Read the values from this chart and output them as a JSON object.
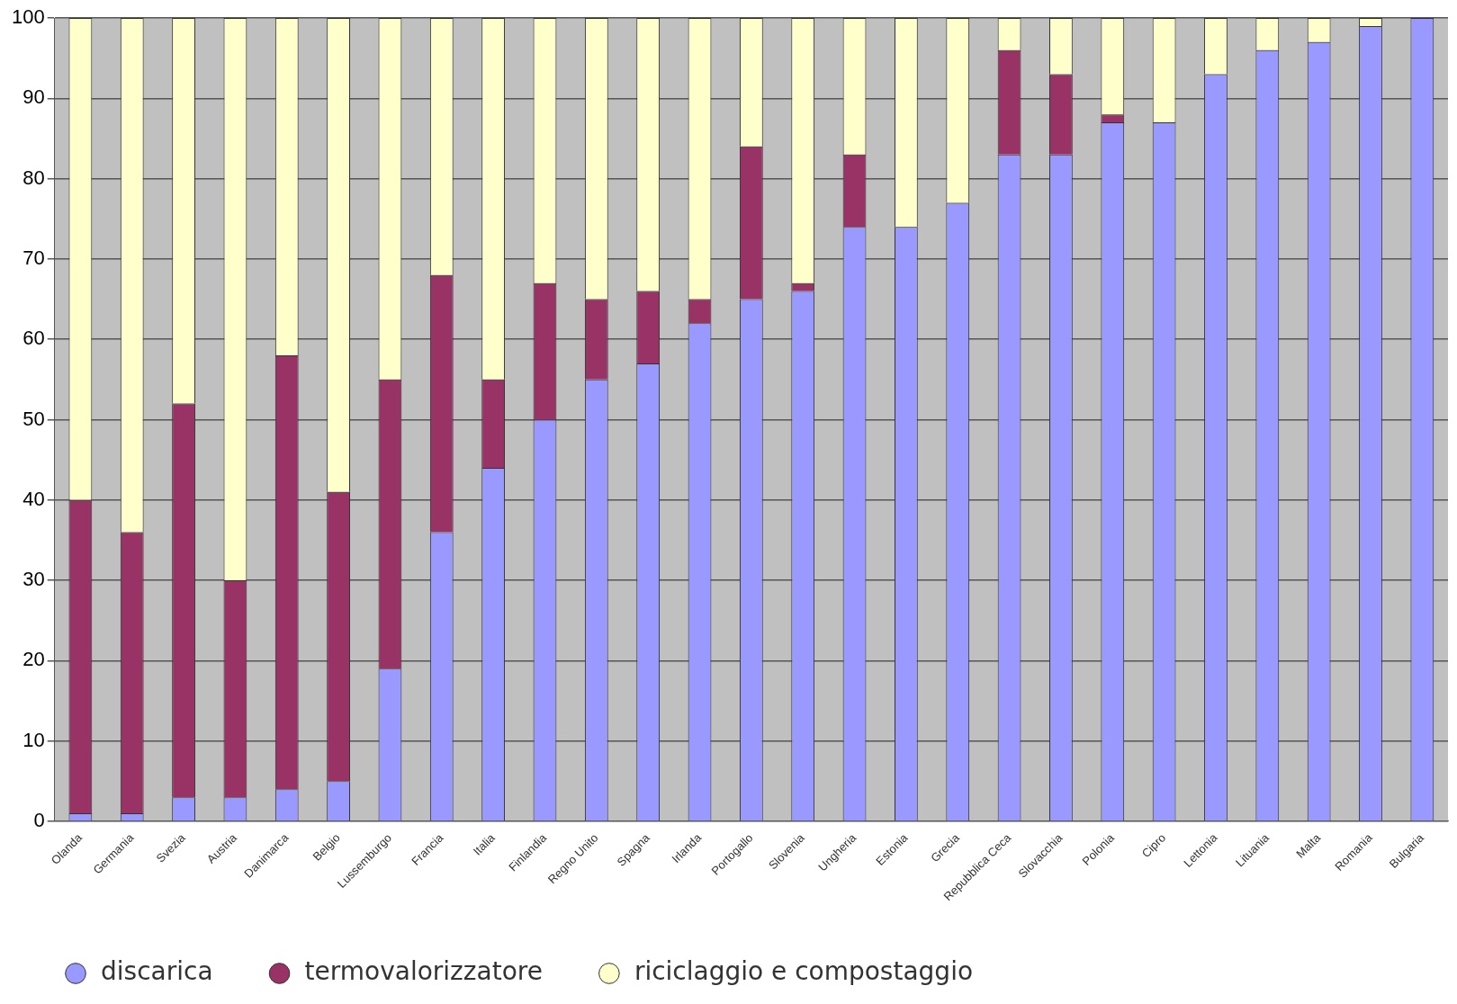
{
  "chart_data": {
    "type": "bar",
    "stacked": true,
    "categories": [
      "Olanda",
      "Germania",
      "Svezia",
      "Austria",
      "Danimarca",
      "Belgio",
      "Lussemburgo",
      "Francia",
      "Italia",
      "Finlandia",
      "Regno Unito",
      "Spagna",
      "Irlanda",
      "Portogallo",
      "Slovenia",
      "Ungheria",
      "Estonia",
      "Grecia",
      "Repubblica Ceca",
      "Slovacchia",
      "Polonia",
      "Cipro",
      "Lettonia",
      "Lituania",
      "Malta",
      "Romania",
      "Bulgaria"
    ],
    "series": [
      {
        "name": "discarica",
        "color": "#9999ff",
        "values": [
          1,
          1,
          3,
          3,
          4,
          5,
          19,
          36,
          44,
          50,
          55,
          57,
          62,
          65,
          66,
          74,
          74,
          77,
          83,
          83,
          87,
          87,
          93,
          96,
          97,
          99,
          100
        ]
      },
      {
        "name": "termovalorizzatore",
        "color": "#993366",
        "values": [
          39,
          35,
          49,
          27,
          54,
          36,
          36,
          32,
          11,
          17,
          10,
          9,
          3,
          19,
          1,
          9,
          0,
          0,
          13,
          10,
          1,
          0,
          0,
          0,
          0,
          0,
          0
        ]
      },
      {
        "name": "riciclaggio e compostaggio",
        "color": "#ffffcc",
        "values": [
          60,
          64,
          48,
          70,
          42,
          59,
          45,
          32,
          45,
          33,
          35,
          34,
          35,
          16,
          33,
          17,
          26,
          23,
          4,
          7,
          12,
          13,
          7,
          4,
          3,
          1,
          0
        ]
      }
    ],
    "ylim": [
      0,
      100
    ],
    "yticks": [
      0,
      10,
      20,
      30,
      40,
      50,
      60,
      70,
      80,
      90,
      100
    ],
    "grid": "y",
    "legend": "bottom"
  }
}
